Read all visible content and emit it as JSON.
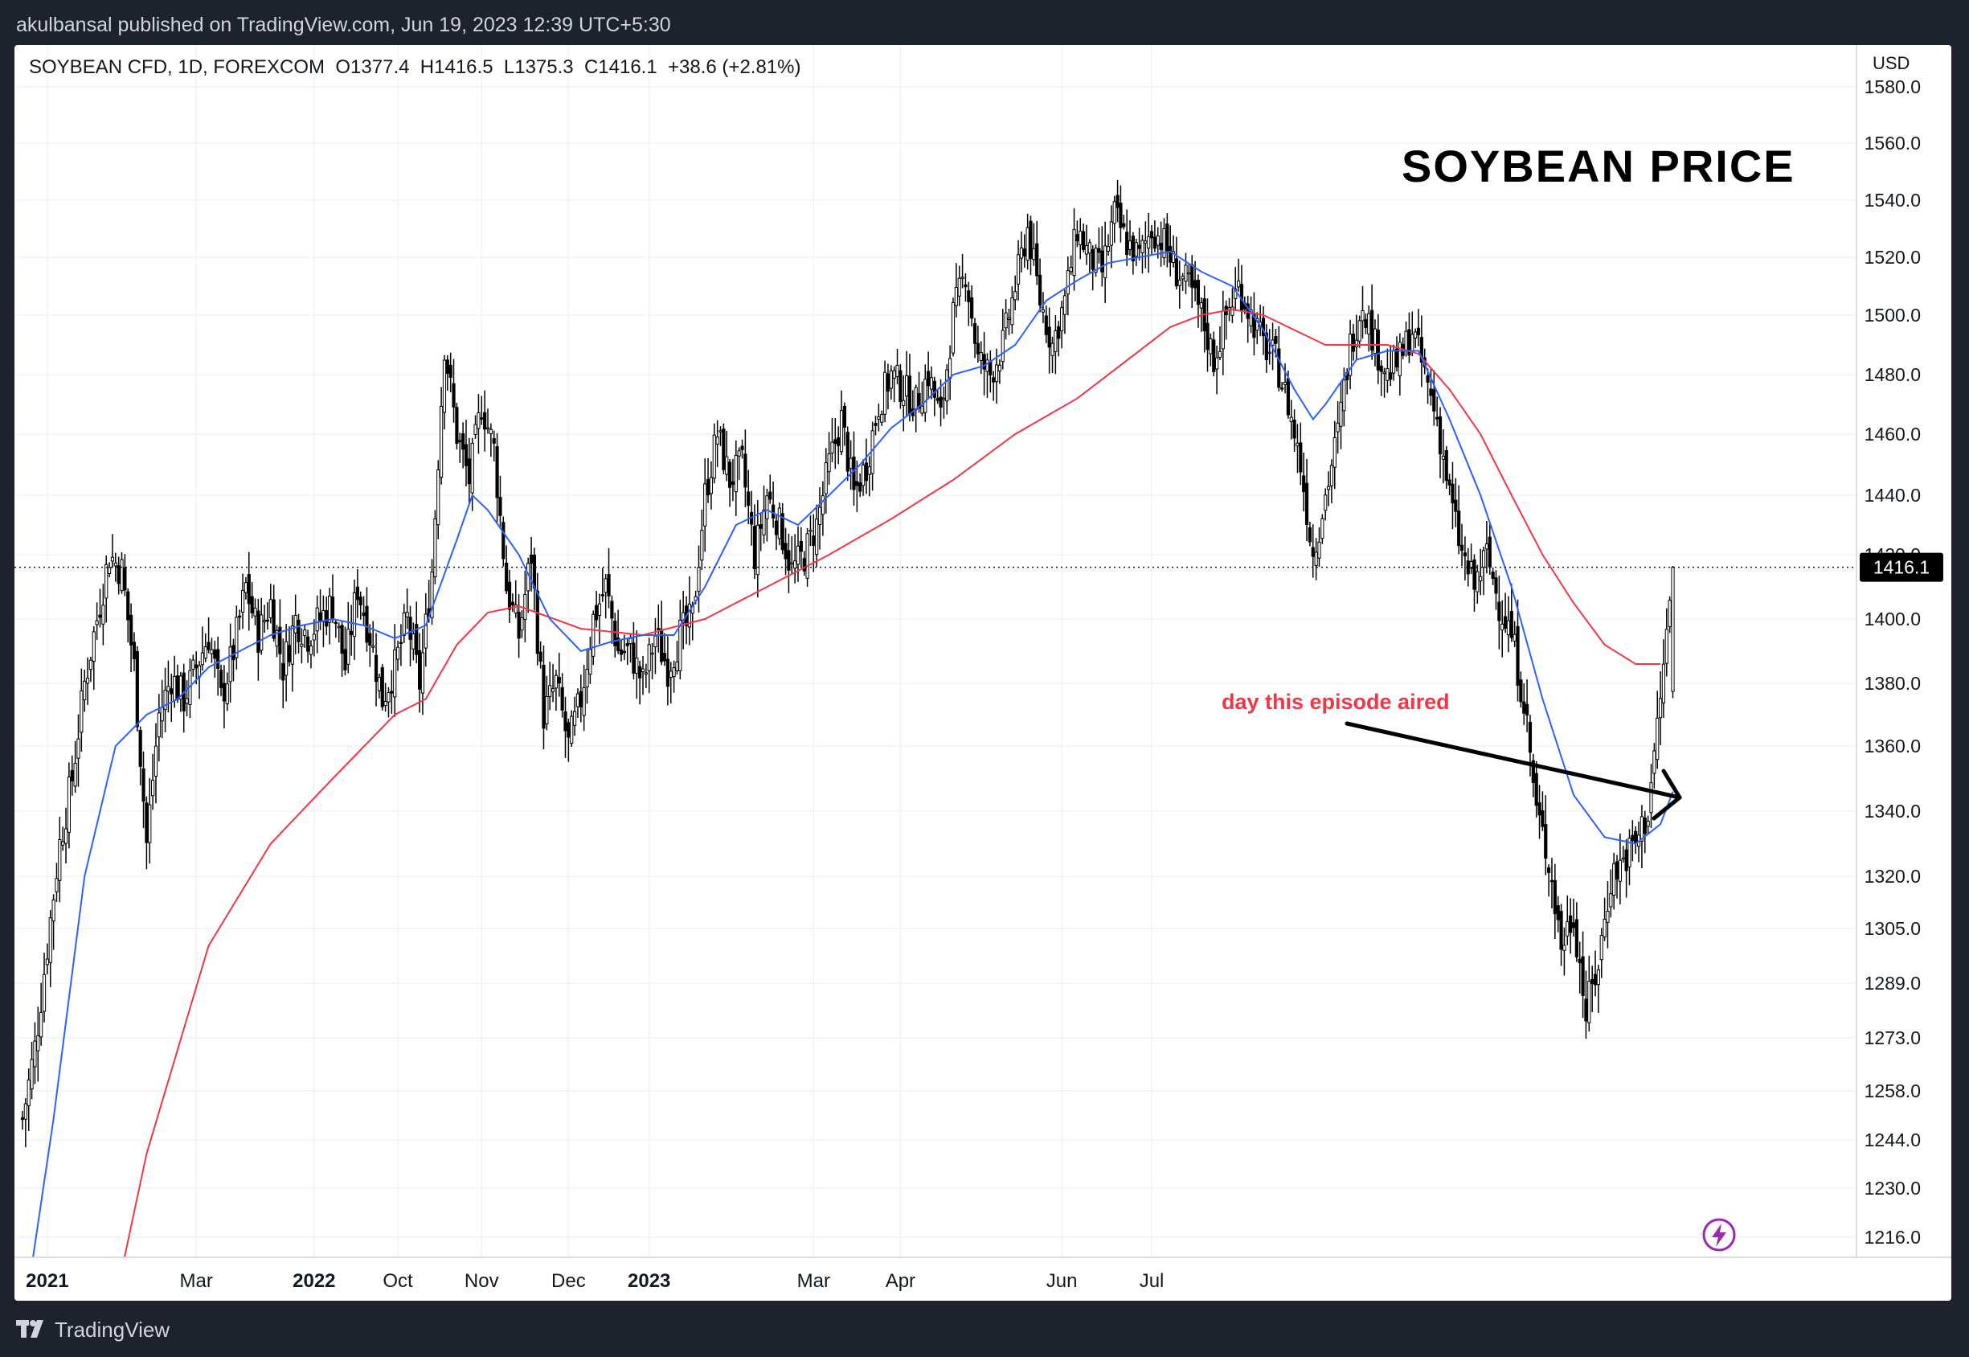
{
  "header": {
    "publisher_line": "akulbansal published on TradingView.com, Jun 19, 2023 12:39 UTC+5:30"
  },
  "footer": {
    "brand": "TradingView"
  },
  "colors": {
    "ma_fast": "#2962ff",
    "ma_slow": "#f23645",
    "annotation": "#f23645",
    "candle": "#000000",
    "price_tag_bg": "#000000"
  },
  "chart_data": {
    "type": "candlestick",
    "legend": "SOYBEAN CFD, 1D, FOREXCOM  O1377.4  H1416.5  L1375.3  C1416.1  +38.6 (+2.81%)",
    "title": "SOYBEAN PRICE",
    "currency": "USD",
    "last_price": 1416.1,
    "last_price_label": "1416.1",
    "annotation": "day this episode aired",
    "y_ticks": [
      "1216.0",
      "1230.0",
      "1244.0",
      "1258.0",
      "1273.0",
      "1289.0",
      "1305.0",
      "1320.0",
      "1340.0",
      "1360.0",
      "1380.0",
      "1400.0",
      "1420.0",
      "1440.0",
      "1460.0",
      "1480.0",
      "1500.0",
      "1520.0",
      "1540.0",
      "1560.0",
      "1580.0"
    ],
    "x_ticks": [
      {
        "label": "2021",
        "bold": true
      },
      {
        "label": "Mar",
        "bold": false
      },
      {
        "label": "2022",
        "bold": true
      },
      {
        "label": "Oct",
        "bold": false
      },
      {
        "label": "Nov",
        "bold": false
      },
      {
        "label": "Dec",
        "bold": false
      },
      {
        "label": "2023",
        "bold": true
      },
      {
        "label": "Mar",
        "bold": false
      },
      {
        "label": "Apr",
        "bold": false
      },
      {
        "label": "Jun",
        "bold": false
      },
      {
        "label": "Jul",
        "bold": false
      }
    ],
    "close_path": [
      [
        0,
        1250
      ],
      [
        4,
        1270
      ],
      [
        8,
        1300
      ],
      [
        12,
        1330
      ],
      [
        16,
        1350
      ],
      [
        20,
        1380
      ],
      [
        24,
        1400
      ],
      [
        28,
        1420
      ],
      [
        32,
        1415
      ],
      [
        36,
        1385
      ],
      [
        40,
        1330
      ],
      [
        44,
        1370
      ],
      [
        48,
        1382
      ],
      [
        52,
        1375
      ],
      [
        56,
        1385
      ],
      [
        60,
        1395
      ],
      [
        64,
        1375
      ],
      [
        68,
        1390
      ],
      [
        72,
        1410
      ],
      [
        76,
        1395
      ],
      [
        80,
        1405
      ],
      [
        84,
        1385
      ],
      [
        88,
        1400
      ],
      [
        92,
        1395
      ],
      [
        96,
        1400
      ],
      [
        100,
        1405
      ],
      [
        104,
        1385
      ],
      [
        108,
        1410
      ],
      [
        112,
        1395
      ],
      [
        116,
        1375
      ],
      [
        120,
        1385
      ],
      [
        124,
        1400
      ],
      [
        128,
        1380
      ],
      [
        132,
        1415
      ],
      [
        136,
        1490
      ],
      [
        140,
        1460
      ],
      [
        144,
        1445
      ],
      [
        148,
        1470
      ],
      [
        152,
        1455
      ],
      [
        156,
        1410
      ],
      [
        160,
        1395
      ],
      [
        164,
        1420
      ],
      [
        168,
        1370
      ],
      [
        172,
        1380
      ],
      [
        176,
        1360
      ],
      [
        180,
        1375
      ],
      [
        184,
        1400
      ],
      [
        188,
        1410
      ],
      [
        192,
        1390
      ],
      [
        196,
        1390
      ],
      [
        200,
        1380
      ],
      [
        204,
        1395
      ],
      [
        208,
        1385
      ],
      [
        212,
        1395
      ],
      [
        216,
        1400
      ],
      [
        220,
        1440
      ],
      [
        224,
        1460
      ],
      [
        228,
        1445
      ],
      [
        232,
        1450
      ],
      [
        236,
        1420
      ],
      [
        240,
        1440
      ],
      [
        244,
        1430
      ],
      [
        248,
        1415
      ],
      [
        252,
        1420
      ],
      [
        256,
        1430
      ],
      [
        260,
        1450
      ],
      [
        264,
        1465
      ],
      [
        268,
        1440
      ],
      [
        272,
        1450
      ],
      [
        276,
        1470
      ],
      [
        280,
        1480
      ],
      [
        284,
        1475
      ],
      [
        288,
        1470
      ],
      [
        292,
        1480
      ],
      [
        296,
        1465
      ],
      [
        300,
        1500
      ],
      [
        304,
        1515
      ],
      [
        308,
        1485
      ],
      [
        312,
        1480
      ],
      [
        316,
        1490
      ],
      [
        320,
        1510
      ],
      [
        324,
        1530
      ],
      [
        328,
        1505
      ],
      [
        332,
        1490
      ],
      [
        336,
        1505
      ],
      [
        340,
        1530
      ],
      [
        344,
        1520
      ],
      [
        348,
        1515
      ],
      [
        352,
        1535
      ],
      [
        356,
        1525
      ],
      [
        360,
        1520
      ],
      [
        364,
        1530
      ],
      [
        368,
        1525
      ],
      [
        372,
        1515
      ],
      [
        376,
        1510
      ],
      [
        380,
        1500
      ],
      [
        384,
        1485
      ],
      [
        388,
        1500
      ],
      [
        392,
        1510
      ],
      [
        396,
        1500
      ],
      [
        400,
        1490
      ],
      [
        404,
        1485
      ],
      [
        408,
        1470
      ],
      [
        412,
        1450
      ],
      [
        416,
        1420
      ],
      [
        420,
        1440
      ],
      [
        424,
        1460
      ],
      [
        428,
        1490
      ],
      [
        432,
        1505
      ],
      [
        436,
        1490
      ],
      [
        440,
        1480
      ],
      [
        444,
        1485
      ],
      [
        448,
        1495
      ],
      [
        452,
        1480
      ],
      [
        456,
        1465
      ],
      [
        460,
        1440
      ],
      [
        464,
        1420
      ],
      [
        468,
        1410
      ],
      [
        472,
        1420
      ],
      [
        476,
        1405
      ],
      [
        480,
        1395
      ],
      [
        484,
        1375
      ],
      [
        488,
        1340
      ],
      [
        492,
        1325
      ],
      [
        496,
        1300
      ],
      [
        500,
        1310
      ],
      [
        504,
        1280
      ],
      [
        508,
        1295
      ],
      [
        512,
        1320
      ],
      [
        516,
        1325
      ],
      [
        520,
        1330
      ],
      [
        524,
        1340
      ],
      [
        528,
        1375
      ],
      [
        532,
        1416.1
      ]
    ],
    "ma_fast_path": [
      [
        0,
        1190
      ],
      [
        10,
        1250
      ],
      [
        20,
        1320
      ],
      [
        30,
        1360
      ],
      [
        40,
        1370
      ],
      [
        50,
        1375
      ],
      [
        60,
        1385
      ],
      [
        70,
        1390
      ],
      [
        80,
        1395
      ],
      [
        90,
        1398
      ],
      [
        100,
        1400
      ],
      [
        110,
        1398
      ],
      [
        120,
        1394
      ],
      [
        130,
        1398
      ],
      [
        140,
        1425
      ],
      [
        145,
        1440
      ],
      [
        150,
        1435
      ],
      [
        160,
        1420
      ],
      [
        170,
        1400
      ],
      [
        180,
        1390
      ],
      [
        190,
        1393
      ],
      [
        200,
        1395
      ],
      [
        210,
        1395
      ],
      [
        220,
        1410
      ],
      [
        230,
        1430
      ],
      [
        240,
        1435
      ],
      [
        250,
        1430
      ],
      [
        260,
        1440
      ],
      [
        270,
        1450
      ],
      [
        280,
        1462
      ],
      [
        290,
        1470
      ],
      [
        300,
        1480
      ],
      [
        310,
        1483
      ],
      [
        320,
        1490
      ],
      [
        330,
        1505
      ],
      [
        340,
        1512
      ],
      [
        350,
        1518
      ],
      [
        360,
        1520
      ],
      [
        370,
        1522
      ],
      [
        380,
        1515
      ],
      [
        390,
        1510
      ],
      [
        400,
        1495
      ],
      [
        410,
        1475
      ],
      [
        416,
        1465
      ],
      [
        420,
        1470
      ],
      [
        430,
        1485
      ],
      [
        440,
        1488
      ],
      [
        450,
        1488
      ],
      [
        460,
        1465
      ],
      [
        470,
        1440
      ],
      [
        480,
        1410
      ],
      [
        490,
        1375
      ],
      [
        500,
        1345
      ],
      [
        510,
        1332
      ],
      [
        520,
        1330
      ],
      [
        528,
        1336
      ],
      [
        532,
        1346
      ]
    ],
    "ma_slow_path": [
      [
        28,
        1190
      ],
      [
        40,
        1240
      ],
      [
        60,
        1300
      ],
      [
        80,
        1330
      ],
      [
        100,
        1350
      ],
      [
        120,
        1370
      ],
      [
        130,
        1375
      ],
      [
        140,
        1392
      ],
      [
        150,
        1402
      ],
      [
        160,
        1404
      ],
      [
        180,
        1397
      ],
      [
        200,
        1395
      ],
      [
        220,
        1400
      ],
      [
        240,
        1410
      ],
      [
        260,
        1420
      ],
      [
        280,
        1432
      ],
      [
        300,
        1445
      ],
      [
        320,
        1460
      ],
      [
        340,
        1472
      ],
      [
        360,
        1488
      ],
      [
        370,
        1496
      ],
      [
        380,
        1500
      ],
      [
        390,
        1502
      ],
      [
        400,
        1500
      ],
      [
        410,
        1495
      ],
      [
        420,
        1490
      ],
      [
        430,
        1490
      ],
      [
        440,
        1490
      ],
      [
        450,
        1487
      ],
      [
        460,
        1475
      ],
      [
        470,
        1460
      ],
      [
        480,
        1440
      ],
      [
        490,
        1420
      ],
      [
        500,
        1405
      ],
      [
        510,
        1392
      ],
      [
        520,
        1386
      ],
      [
        528,
        1386
      ]
    ]
  }
}
